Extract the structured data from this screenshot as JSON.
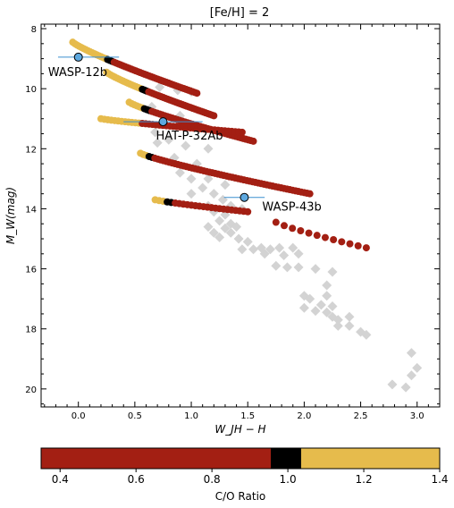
{
  "chart_data": {
    "type": "scatter",
    "title": "[Fe/H] = 2",
    "xlabel": "W_JH − H",
    "ylabel": "M_W(mag)",
    "xlim": [
      -0.33,
      3.2
    ],
    "ylim": [
      20.6,
      7.85
    ],
    "y_inverted": true,
    "x_ticks": [
      "0.0",
      "0.5",
      "1.0",
      "1.5",
      "2.0",
      "2.5",
      "3.0"
    ],
    "y_ticks": [
      "8",
      "10",
      "12",
      "14",
      "16",
      "18",
      "20"
    ],
    "field_objects": [
      {
        "x": 0.72,
        "y": 9.95
      },
      {
        "x": 0.88,
        "y": 10.05
      },
      {
        "x": 1.0,
        "y": 10.1
      },
      {
        "x": 0.65,
        "y": 10.6
      },
      {
        "x": 0.9,
        "y": 10.9
      },
      {
        "x": 0.68,
        "y": 11.45
      },
      {
        "x": 0.8,
        "y": 11.7
      },
      {
        "x": 0.7,
        "y": 11.8
      },
      {
        "x": 0.95,
        "y": 11.9
      },
      {
        "x": 1.15,
        "y": 12.0
      },
      {
        "x": 0.85,
        "y": 12.3
      },
      {
        "x": 1.05,
        "y": 12.5
      },
      {
        "x": 0.9,
        "y": 12.8
      },
      {
        "x": 1.0,
        "y": 13.0
      },
      {
        "x": 1.15,
        "y": 13.0
      },
      {
        "x": 1.3,
        "y": 13.2
      },
      {
        "x": 1.1,
        "y": 13.3
      },
      {
        "x": 1.2,
        "y": 13.5
      },
      {
        "x": 1.0,
        "y": 13.5
      },
      {
        "x": 1.28,
        "y": 13.7
      },
      {
        "x": 1.15,
        "y": 13.9
      },
      {
        "x": 1.35,
        "y": 13.9
      },
      {
        "x": 1.2,
        "y": 14.1
      },
      {
        "x": 1.45,
        "y": 14.0
      },
      {
        "x": 1.3,
        "y": 14.2
      },
      {
        "x": 1.25,
        "y": 14.4
      },
      {
        "x": 1.35,
        "y": 14.5
      },
      {
        "x": 1.15,
        "y": 14.6
      },
      {
        "x": 1.3,
        "y": 14.65
      },
      {
        "x": 1.4,
        "y": 14.6
      },
      {
        "x": 1.2,
        "y": 14.8
      },
      {
        "x": 1.35,
        "y": 14.8
      },
      {
        "x": 1.25,
        "y": 14.95
      },
      {
        "x": 1.42,
        "y": 15.0
      },
      {
        "x": 1.5,
        "y": 15.1
      },
      {
        "x": 1.45,
        "y": 15.35
      },
      {
        "x": 1.55,
        "y": 15.35
      },
      {
        "x": 1.62,
        "y": 15.3
      },
      {
        "x": 1.7,
        "y": 15.35
      },
      {
        "x": 1.78,
        "y": 15.3
      },
      {
        "x": 1.9,
        "y": 15.3
      },
      {
        "x": 1.65,
        "y": 15.5
      },
      {
        "x": 1.82,
        "y": 15.55
      },
      {
        "x": 1.95,
        "y": 15.5
      },
      {
        "x": 1.75,
        "y": 15.9
      },
      {
        "x": 1.85,
        "y": 15.95
      },
      {
        "x": 1.95,
        "y": 15.95
      },
      {
        "x": 2.1,
        "y": 16.0
      },
      {
        "x": 2.25,
        "y": 16.1
      },
      {
        "x": 2.2,
        "y": 16.55
      },
      {
        "x": 2.0,
        "y": 16.9
      },
      {
        "x": 2.05,
        "y": 17.0
      },
      {
        "x": 2.2,
        "y": 16.9
      },
      {
        "x": 2.15,
        "y": 17.2
      },
      {
        "x": 2.25,
        "y": 17.25
      },
      {
        "x": 2.0,
        "y": 17.3
      },
      {
        "x": 2.1,
        "y": 17.4
      },
      {
        "x": 2.2,
        "y": 17.45
      },
      {
        "x": 2.25,
        "y": 17.6
      },
      {
        "x": 2.3,
        "y": 17.7
      },
      {
        "x": 2.4,
        "y": 17.6
      },
      {
        "x": 2.3,
        "y": 17.9
      },
      {
        "x": 2.4,
        "y": 17.9
      },
      {
        "x": 2.5,
        "y": 18.1
      },
      {
        "x": 2.55,
        "y": 18.2
      },
      {
        "x": 2.95,
        "y": 18.8
      },
      {
        "x": 3.0,
        "y": 19.3
      },
      {
        "x": 2.95,
        "y": 19.55
      },
      {
        "x": 2.78,
        "y": 19.85
      },
      {
        "x": 2.9,
        "y": 19.95
      }
    ],
    "planets": [
      {
        "name": "WASP-12b",
        "x": 0.0,
        "y": 8.95,
        "xerr_lo": 0.18,
        "xerr_hi": 0.36,
        "yerr": 0.06
      },
      {
        "name": "HAT-P-32Ab",
        "x": 0.75,
        "y": 11.1,
        "xerr_lo": 0.35,
        "xerr_hi": 0.35,
        "yerr": 0.06
      },
      {
        "name": "WASP-43b",
        "x": 1.47,
        "y": 13.62,
        "xerr_lo": 0.18,
        "xerr_hi": 0.18,
        "yerr": 0.06
      }
    ],
    "tracks": [
      {
        "x_start": -0.05,
        "y_start": 8.45,
        "x_end": 1.05,
        "y_end": 10.15,
        "pct_yellow": 0.28,
        "pct_black": 0.05,
        "count": 58
      },
      {
        "x_start": 0.25,
        "y_start": 9.45,
        "x_end": 1.2,
        "y_end": 10.9,
        "pct_yellow": 0.33,
        "pct_black": 0.05,
        "count": 52
      },
      {
        "x_start": 0.45,
        "y_start": 10.45,
        "x_end": 1.55,
        "y_end": 11.75,
        "pct_yellow": 0.12,
        "pct_black": 0.05,
        "count": 50
      },
      {
        "x_start": 0.2,
        "y_start": 11.0,
        "x_end": 1.45,
        "y_end": 11.45,
        "pct_yellow": 0.28,
        "pct_black": 0.0,
        "count": 42
      },
      {
        "x_start": 0.55,
        "y_start": 12.15,
        "x_end": 2.05,
        "y_end": 13.5,
        "pct_yellow": 0.05,
        "pct_black": 0.02,
        "count": 60
      },
      {
        "x_start": 0.68,
        "y_start": 13.7,
        "x_end": 1.5,
        "y_end": 14.1,
        "pct_yellow": 0.12,
        "pct_black": 0.08,
        "count": 24
      },
      {
        "x_start": 1.75,
        "y_start": 14.45,
        "x_end": 2.55,
        "y_end": 15.3,
        "pct_yellow": 0.0,
        "pct_black": 0.0,
        "count": 12
      }
    ],
    "colorbar": {
      "label": "C/O Ratio",
      "range": [
        0.35,
        1.4
      ],
      "ticks": [
        "0.4",
        "0.6",
        "0.8",
        "1.0",
        "1.2",
        "1.4"
      ],
      "segments": [
        {
          "from": 0.35,
          "to": 0.955,
          "color": "#A31F13"
        },
        {
          "from": 0.955,
          "to": 1.035,
          "color": "#000000"
        },
        {
          "from": 1.035,
          "to": 1.4,
          "color": "#E6BB4C"
        }
      ]
    },
    "grid": false
  },
  "colors": {
    "low_co": "#A31F13",
    "mid_co": "#000000",
    "high_co": "#E6BB4C",
    "field": "#D3D3D3",
    "planet": "#5DA8DF",
    "errorbar": "#3C8FCF"
  }
}
